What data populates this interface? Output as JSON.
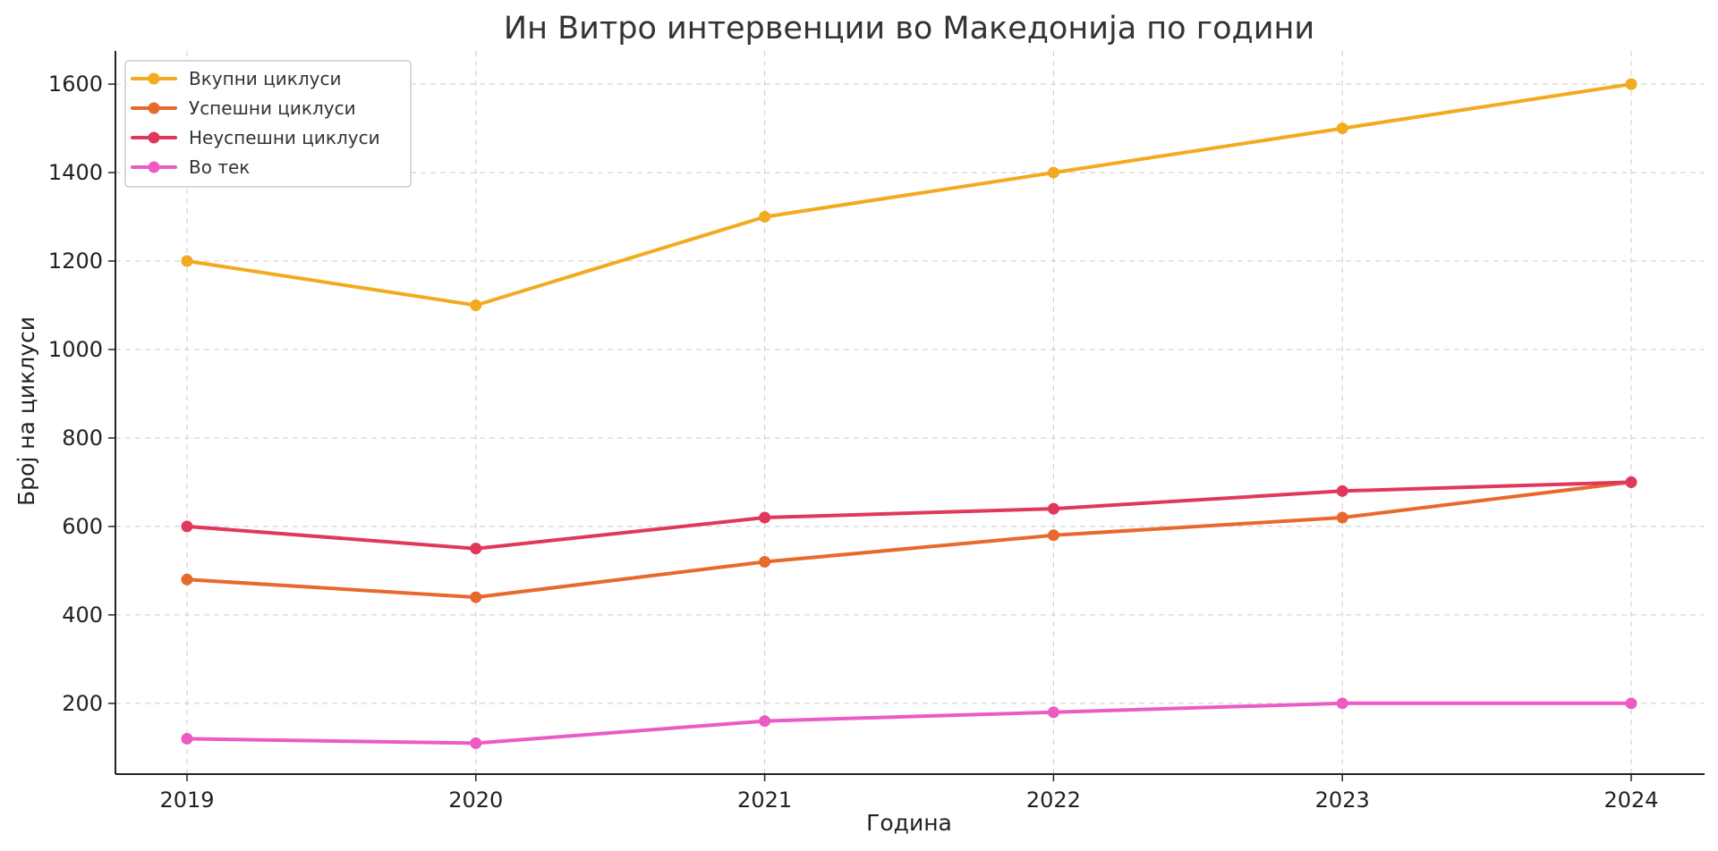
{
  "chart_data": {
    "type": "line",
    "title": "Ин Витро интервенции во Македонија по години",
    "xlabel": "Година",
    "ylabel": "Број на циклуси",
    "x": [
      "2019",
      "2020",
      "2021",
      "2022",
      "2023",
      "2024"
    ],
    "ylim": [
      40,
      1675
    ],
    "yticks": [
      200,
      400,
      600,
      800,
      1000,
      1200,
      1400,
      1600
    ],
    "grid": true,
    "legend_position": "top-left",
    "series": [
      {
        "name": "Вкупни циклуси",
        "color": "#f2aa1e",
        "values": [
          1200,
          1100,
          1300,
          1400,
          1500,
          1600
        ]
      },
      {
        "name": "Успешни циклуси",
        "color": "#e8692c",
        "values": [
          480,
          440,
          520,
          580,
          620,
          700
        ]
      },
      {
        "name": "Неуспешни циклуси",
        "color": "#e0385a",
        "values": [
          600,
          550,
          620,
          640,
          680,
          700
        ]
      },
      {
        "name": "Во тек",
        "color": "#ec5bc4",
        "values": [
          120,
          110,
          160,
          180,
          200,
          200
        ]
      }
    ]
  }
}
